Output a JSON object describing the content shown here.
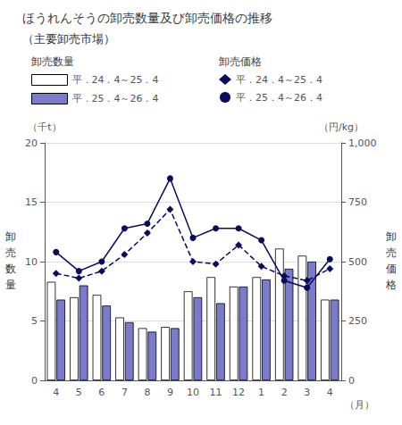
{
  "chart_data": {
    "type": "bar",
    "title": "ほうれんそうの卸売数量及び卸売価格の推移",
    "subtitle": "（主要卸売市場）",
    "x_label": "（月）",
    "y_label": "（千t）",
    "y_label_side": "卸\n売\n数\n量",
    "y2_label": "（円/kg）",
    "y2_label_side": "卸\n売\n価\n格",
    "legend_titles": [
      "卸売数量",
      "卸売価格"
    ],
    "categories": [
      "4",
      "5",
      "6",
      "7",
      "8",
      "9",
      "10",
      "11",
      "12",
      "1",
      "2",
      "3",
      "4"
    ],
    "series": [
      {
        "name": "平．24．4～25．4",
        "type": "bar",
        "color": "#ffffff",
        "values": [
          8.3,
          7.0,
          7.2,
          5.3,
          4.4,
          4.5,
          7.5,
          8.7,
          7.9,
          8.7,
          11.1,
          10.5,
          6.8
        ]
      },
      {
        "name": "平．25．4～26．4",
        "type": "bar",
        "color": "#7b7bcb",
        "values": [
          6.8,
          8.0,
          6.3,
          4.9,
          4.1,
          4.4,
          7.0,
          6.5,
          7.9,
          8.5,
          9.4,
          10.0,
          6.8
        ]
      },
      {
        "name": "平．24．4～25．4",
        "type": "line",
        "axis": "y2",
        "color": "#0a0a5e",
        "marker": "diamond",
        "line_style": "dashed",
        "values": [
          450,
          430,
          460,
          530,
          620,
          720,
          500,
          490,
          570,
          480,
          440,
          420,
          470
        ]
      },
      {
        "name": "平．25．4～26．4",
        "type": "line",
        "axis": "y2",
        "color": "#0a0a5e",
        "marker": "circle",
        "line_style": "solid",
        "values": [
          540,
          460,
          500,
          640,
          660,
          850,
          600,
          640,
          640,
          590,
          420,
          390,
          510
        ]
      }
    ],
    "edge_color": "#000000",
    "ylim": [
      0,
      20
    ],
    "yticks": [
      0,
      5,
      10,
      15,
      20
    ],
    "y2lim": [
      0,
      1000
    ],
    "y2ticks": [
      0,
      250,
      500,
      750,
      {
        "value": 1000,
        "label": "1,000"
      }
    ],
    "grid": true,
    "legend": "top"
  }
}
